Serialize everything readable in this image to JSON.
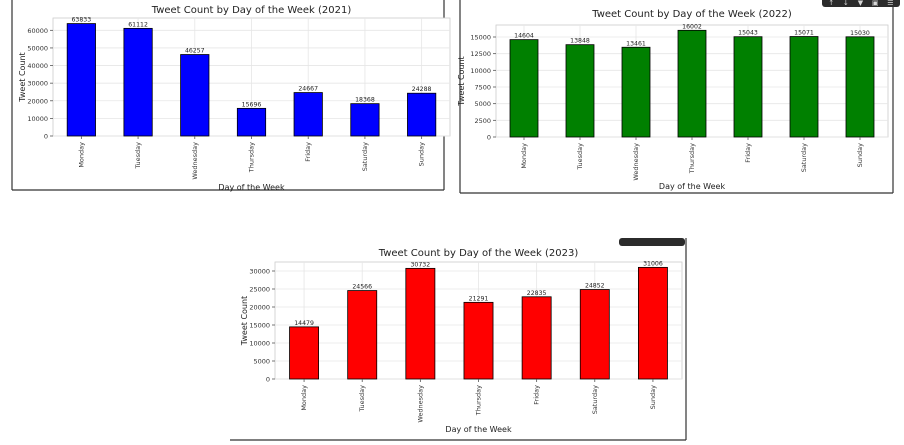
{
  "toolbar_icons": [
    "arrow-up-icon",
    "arrow-down-icon",
    "pin-icon",
    "copy-icon",
    "delete-icon"
  ],
  "chart_data": [
    {
      "type": "bar",
      "title": "Tweet Count by Day of the Week (2021)",
      "xlabel": "Day of the Week",
      "ylabel": "Tweet Count",
      "categories": [
        "Monday",
        "Tuesday",
        "Wednesday",
        "Thursday",
        "Friday",
        "Saturday",
        "Sunday"
      ],
      "values": [
        63833,
        61112,
        46257,
        15696,
        24667,
        18368,
        24288
      ],
      "yticks": [
        0,
        10000,
        20000,
        30000,
        40000,
        50000,
        60000
      ],
      "ylim": [
        0,
        67000
      ],
      "bar_color": "#0000ff",
      "grid": true
    },
    {
      "type": "bar",
      "title": "Tweet Count by Day of the Week (2022)",
      "xlabel": "Day of the Week",
      "ylabel": "Tweet Count",
      "categories": [
        "Monday",
        "Tuesday",
        "Wednesday",
        "Thursday",
        "Friday",
        "Saturday",
        "Sunday"
      ],
      "values": [
        14604,
        13848,
        13461,
        16002,
        15043,
        15071,
        15030
      ],
      "yticks": [
        0,
        2500,
        5000,
        7500,
        10000,
        12500,
        15000
      ],
      "ylim": [
        0,
        16800
      ],
      "bar_color": "#008000",
      "grid": true
    },
    {
      "type": "bar",
      "title": "Tweet Count by Day of the Week (2023)",
      "xlabel": "Day of the Week",
      "ylabel": "Tweet Count",
      "categories": [
        "Monday",
        "Tuesday",
        "Wednesday",
        "Thursday",
        "Friday",
        "Saturday",
        "Sunday"
      ],
      "values": [
        14479,
        24566,
        30732,
        21291,
        22835,
        24852,
        31006
      ],
      "yticks": [
        0,
        5000,
        10000,
        15000,
        20000,
        25000,
        30000
      ],
      "ylim": [
        0,
        32500
      ],
      "bar_color": "#ff0000",
      "grid": true
    }
  ]
}
